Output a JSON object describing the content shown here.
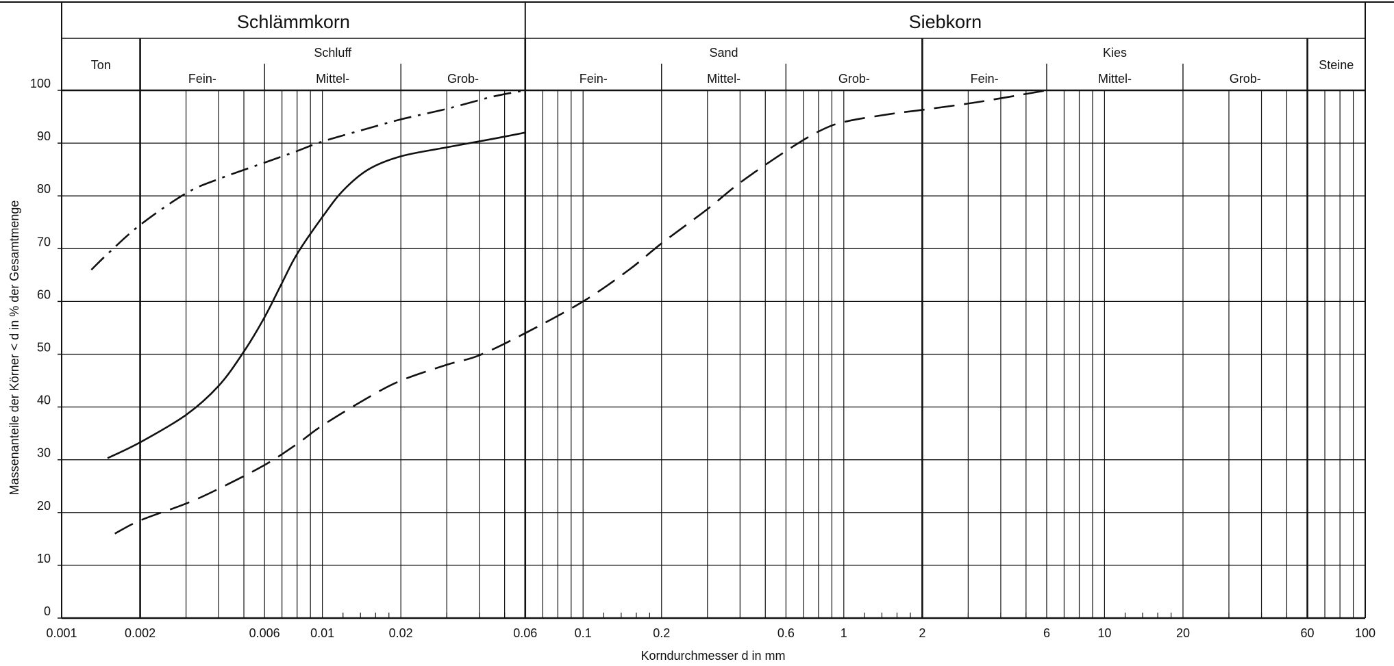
{
  "chart_data": {
    "type": "line",
    "title": "",
    "xlabel": "Korndurchmesser d in mm",
    "ylabel": "Massenanteile der Körner < d in % der Gesamtmenge",
    "x_scale": "log",
    "xlim": [
      0.001,
      100
    ],
    "ylim": [
      0,
      100
    ],
    "grid": true,
    "x_tick_labels": [
      "0.001",
      "0.002",
      "0.006",
      "0.01",
      "0.02",
      "0.06",
      "0.1",
      "0.2",
      "0.6",
      "1",
      "2",
      "6",
      "10",
      "20",
      "60",
      "100"
    ],
    "y_tick_labels": [
      "0",
      "10",
      "20",
      "30",
      "40",
      "50",
      "60",
      "70",
      "80",
      "90",
      "100"
    ],
    "header": {
      "groups": [
        {
          "label": "Schlämmkorn",
          "from": 0.001,
          "to": 0.06
        },
        {
          "label": "Siebkorn",
          "from": 0.06,
          "to": 100
        }
      ],
      "fractions": [
        {
          "label": "Ton",
          "from": 0.001,
          "to": 0.002
        },
        {
          "label": "Schluff",
          "from": 0.002,
          "to": 0.06
        },
        {
          "label": "Sand",
          "from": 0.06,
          "to": 2
        },
        {
          "label": "Kies",
          "from": 2,
          "to": 60
        },
        {
          "label": "Steine",
          "from": 60,
          "to": 100
        }
      ],
      "subfractions": [
        {
          "label": "Fein-",
          "from": 0.002,
          "to": 0.006
        },
        {
          "label": "Mittel-",
          "from": 0.006,
          "to": 0.02
        },
        {
          "label": "Grob-",
          "from": 0.02,
          "to": 0.06
        },
        {
          "label": "Fein-",
          "from": 0.06,
          "to": 0.2
        },
        {
          "label": "Mittel-",
          "from": 0.2,
          "to": 0.6
        },
        {
          "label": "Grob-",
          "from": 0.6,
          "to": 2
        },
        {
          "label": "Fein-",
          "from": 2,
          "to": 6
        },
        {
          "label": "Mittel-",
          "from": 6,
          "to": 20
        },
        {
          "label": "Grob-",
          "from": 20,
          "to": 60
        }
      ]
    },
    "series": [
      {
        "style": "solid",
        "x": [
          0.0015,
          0.002,
          0.003,
          0.004,
          0.005,
          0.006,
          0.007,
          0.008,
          0.01,
          0.012,
          0.015,
          0.02,
          0.03,
          0.045,
          0.06
        ],
        "y": [
          30.3,
          33.3,
          38.5,
          44,
          50.5,
          57,
          63.5,
          69,
          76,
          81,
          85,
          87.5,
          89.2,
          90.8,
          92
        ]
      },
      {
        "style": "dashed",
        "x": [
          0.0016,
          0.002,
          0.003,
          0.004,
          0.006,
          0.008,
          0.01,
          0.015,
          0.02,
          0.03,
          0.04,
          0.06,
          0.1,
          0.15,
          0.2,
          0.3,
          0.4,
          0.6,
          0.8,
          1,
          1.5,
          2,
          3,
          4,
          6
        ],
        "y": [
          16,
          18.5,
          21.7,
          24.5,
          29,
          33,
          36.5,
          41.8,
          45,
          48,
          49.8,
          54,
          60,
          66,
          71,
          77.5,
          82.5,
          88.5,
          92.2,
          94,
          95.5,
          96.3,
          97.5,
          98.5,
          100
        ]
      },
      {
        "style": "dash-dot",
        "x": [
          0.0013,
          0.0015,
          0.002,
          0.003,
          0.004,
          0.006,
          0.008,
          0.01,
          0.015,
          0.02,
          0.03,
          0.045,
          0.06
        ],
        "y": [
          66,
          69,
          74.5,
          80.5,
          83.2,
          86.3,
          88.5,
          90.3,
          92.8,
          94.5,
          96.5,
          98.8,
          100
        ]
      }
    ]
  }
}
